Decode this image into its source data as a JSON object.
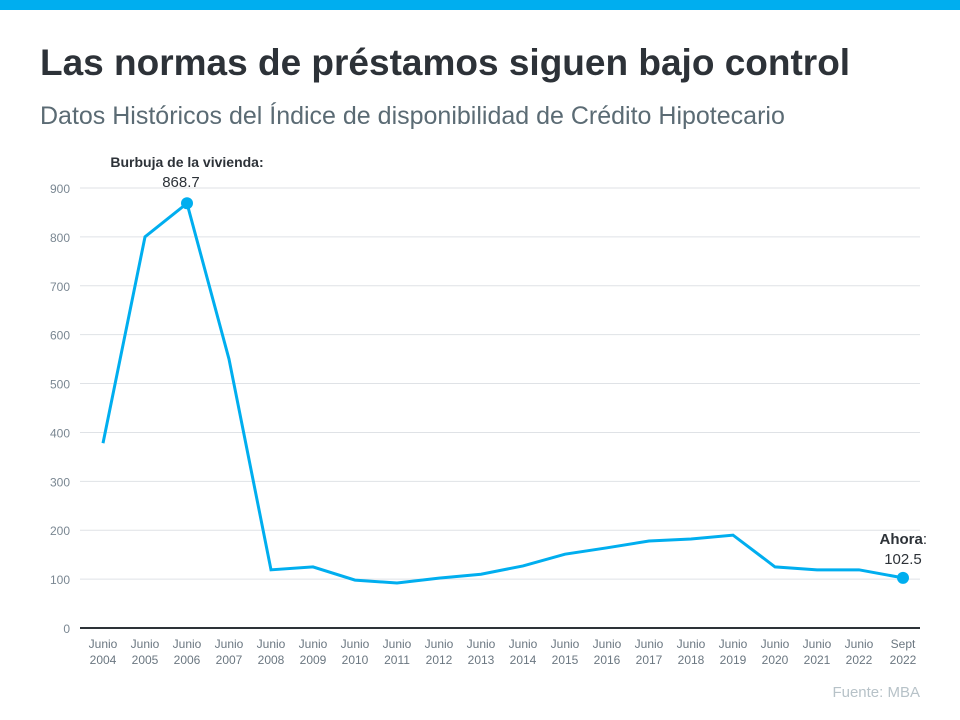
{
  "title": "Las normas de préstamos siguen bajo control",
  "subtitle": "Datos Históricos del Índice de disponibilidad de Crédito Hipotecario",
  "source": "Fuente:  MBA",
  "colors": {
    "line": "#00aeef",
    "accent_bar": "#00aeef",
    "text": "#2d3238"
  },
  "chart_data": {
    "type": "line",
    "title": "",
    "xlabel": "",
    "ylabel": "",
    "ylim": [
      0,
      900
    ],
    "yticks": [
      0,
      100,
      200,
      300,
      400,
      500,
      600,
      700,
      800,
      900
    ],
    "grid": true,
    "categories": [
      [
        "Junio",
        "2004"
      ],
      [
        "Junio",
        "2005"
      ],
      [
        "Junio",
        "2006"
      ],
      [
        "Junio",
        "2007"
      ],
      [
        "Junio",
        "2008"
      ],
      [
        "Junio",
        "2009"
      ],
      [
        "Junio",
        "2010"
      ],
      [
        "Junio",
        "2011"
      ],
      [
        "Junio",
        "2012"
      ],
      [
        "Junio",
        "2013"
      ],
      [
        "Junio",
        "2014"
      ],
      [
        "Junio",
        "2015"
      ],
      [
        "Junio",
        "2016"
      ],
      [
        "Junio",
        "2017"
      ],
      [
        "Junio",
        "2018"
      ],
      [
        "Junio",
        "2019"
      ],
      [
        "Junio",
        "2020"
      ],
      [
        "Junio",
        "2021"
      ],
      [
        "Junio",
        "2022"
      ],
      [
        "Sept",
        "2022"
      ]
    ],
    "values": [
      378,
      800,
      868.7,
      550,
      119,
      125,
      98,
      92,
      102,
      110,
      127,
      151,
      164,
      178,
      182,
      190,
      125,
      119,
      119,
      102.5
    ],
    "annotations": [
      {
        "index": 2,
        "label": "Burbuja de la vivienda:",
        "value": "868.7"
      },
      {
        "index": 19,
        "label": "Ahora",
        "suffix": ":",
        "value": "102.5"
      }
    ]
  }
}
